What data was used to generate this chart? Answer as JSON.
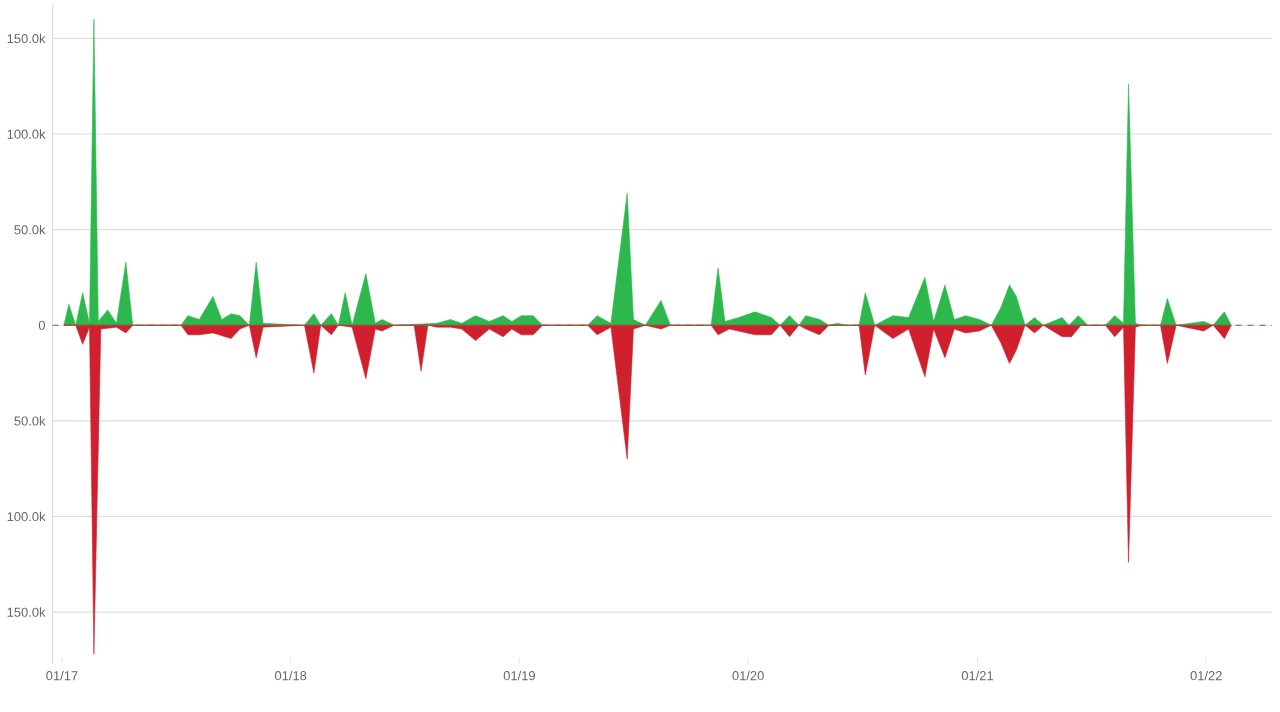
{
  "chart_data": {
    "type": "area",
    "xlim": [
      "2016-12-17",
      "2022-04-16"
    ],
    "ylim": [
      -177000,
      168000
    ],
    "xticks": [
      {
        "value": "2017-01-01",
        "label": "01/17"
      },
      {
        "value": "2018-01-01",
        "label": "01/18"
      },
      {
        "value": "2019-01-01",
        "label": "01/19"
      },
      {
        "value": "2020-01-01",
        "label": "01/20"
      },
      {
        "value": "2021-01-01",
        "label": "01/21"
      },
      {
        "value": "2022-01-01",
        "label": "01/22"
      }
    ],
    "yticks": [
      {
        "value": -150000,
        "label": "150.0k"
      },
      {
        "value": -100000,
        "label": "100.0k"
      },
      {
        "value": -50000,
        "label": "50.0k"
      },
      0,
      {
        "value": 50000,
        "label": "50.0k"
      },
      {
        "value": 100000,
        "label": "100.0k"
      },
      {
        "value": 150000,
        "label": "150.0k"
      }
    ],
    "grid": "y",
    "ref_lines": [
      {
        "axis": "y",
        "value": 0,
        "color": "#8a5a3c",
        "line_style": "dashed"
      }
    ],
    "series": [
      {
        "color": "#2db84d",
        "x": [
          "2017-01-04",
          "2017-01-12",
          "2017-01-23",
          "2017-02-03",
          "2017-02-14",
          "2017-02-21",
          "2017-02-28",
          "2017-03-15",
          "2017-03-29",
          "2017-04-13",
          "2017-04-24",
          "2017-07-10",
          "2017-07-21",
          "2017-08-08",
          "2017-08-30",
          "2017-09-13",
          "2017-09-28",
          "2017-10-12",
          "2017-10-27",
          "2017-11-07",
          "2017-11-18",
          "2018-01-23",
          "2018-02-07",
          "2018-02-18",
          "2018-03-07",
          "2018-03-18",
          "2018-03-29",
          "2018-04-09",
          "2018-05-01",
          "2018-05-16",
          "2018-05-27",
          "2018-06-15",
          "2018-08-22",
          "2018-09-13",
          "2018-10-01",
          "2018-10-23",
          "2018-11-14",
          "2018-12-06",
          "2018-12-20",
          "2019-01-04",
          "2019-01-23",
          "2019-02-07",
          "2019-04-20",
          "2019-05-05",
          "2019-05-27",
          "2019-06-22",
          "2019-07-02",
          "2019-07-21",
          "2019-08-15",
          "2019-08-30",
          "2019-11-03",
          "2019-11-14",
          "2019-11-25",
          "2019-12-17",
          "2020-01-12",
          "2020-02-07",
          "2020-02-21",
          "2020-03-07",
          "2020-03-22",
          "2020-04-02",
          "2020-04-24",
          "2020-05-09",
          "2020-05-23",
          "2020-06-04",
          "2020-06-26",
          "2020-07-06",
          "2020-07-21",
          "2020-08-19",
          "2020-09-13",
          "2020-10-09",
          "2020-10-23",
          "2020-11-10",
          "2020-11-25",
          "2020-12-13",
          "2021-01-04",
          "2021-01-23",
          "2021-02-07",
          "2021-02-21",
          "2021-03-04",
          "2021-03-18",
          "2021-04-02",
          "2021-04-16",
          "2021-05-16",
          "2021-05-27",
          "2021-06-11",
          "2021-06-26",
          "2021-07-24",
          "2021-08-08",
          "2021-08-22",
          "2021-08-30",
          "2021-09-10",
          "2021-09-20",
          "2021-10-20",
          "2021-10-31",
          "2021-11-14",
          "2021-12-28",
          "2022-01-12",
          "2022-01-30",
          "2022-02-10"
        ],
        "values": [
          0,
          11000,
          0,
          17000,
          1000,
          160000,
          2000,
          8000,
          1000,
          33000,
          0,
          0,
          5000,
          3000,
          15000,
          3000,
          6000,
          5000,
          0,
          33000,
          1000,
          0,
          6000,
          0,
          6000,
          0,
          17000,
          0,
          27000,
          1000,
          3000,
          0,
          1000,
          3000,
          1000,
          5000,
          2000,
          5000,
          2000,
          5000,
          5000,
          0,
          0,
          5000,
          1000,
          69000,
          3000,
          0,
          13000,
          0,
          0,
          30000,
          2000,
          4000,
          7000,
          4000,
          0,
          5000,
          0,
          5000,
          3000,
          0,
          1000,
          0,
          0,
          17000,
          0,
          5000,
          4000,
          25000,
          2000,
          21000,
          3000,
          5000,
          3000,
          0,
          9000,
          21000,
          15000,
          0,
          4000,
          0,
          4000,
          0,
          5000,
          0,
          0,
          5000,
          1000,
          126000,
          1000,
          0,
          0,
          14000,
          0,
          2000,
          0,
          7000,
          0
        ]
      },
      {
        "color": "#d0202e",
        "x": [
          "2017-01-04",
          "2017-01-23",
          "2017-02-03",
          "2017-02-14",
          "2017-02-21",
          "2017-03-04",
          "2017-03-29",
          "2017-04-13",
          "2017-04-24",
          "2017-07-10",
          "2017-07-21",
          "2017-08-08",
          "2017-08-30",
          "2017-09-28",
          "2017-10-12",
          "2017-10-27",
          "2017-11-07",
          "2017-11-18",
          "2018-01-23",
          "2018-02-07",
          "2018-02-18",
          "2018-03-07",
          "2018-03-18",
          "2018-04-09",
          "2018-05-01",
          "2018-05-16",
          "2018-05-27",
          "2018-06-15",
          "2018-07-17",
          "2018-07-28",
          "2018-08-08",
          "2018-08-22",
          "2018-09-13",
          "2018-10-01",
          "2018-10-23",
          "2018-11-14",
          "2018-12-06",
          "2018-12-20",
          "2019-01-04",
          "2019-01-23",
          "2019-02-07",
          "2019-04-20",
          "2019-05-05",
          "2019-05-27",
          "2019-06-22",
          "2019-07-02",
          "2019-07-21",
          "2019-08-15",
          "2019-08-30",
          "2019-11-03",
          "2019-11-14",
          "2019-12-02",
          "2020-01-12",
          "2020-02-07",
          "2020-02-21",
          "2020-03-07",
          "2020-03-22",
          "2020-04-02",
          "2020-04-24",
          "2020-05-09",
          "2020-06-26",
          "2020-07-06",
          "2020-07-21",
          "2020-08-19",
          "2020-09-13",
          "2020-10-09",
          "2020-10-23",
          "2020-11-10",
          "2020-11-25",
          "2020-12-13",
          "2021-01-04",
          "2021-01-23",
          "2021-02-07",
          "2021-02-21",
          "2021-03-04",
          "2021-03-18",
          "2021-04-02",
          "2021-04-16",
          "2021-05-16",
          "2021-05-31",
          "2021-06-15",
          "2021-07-24",
          "2021-08-08",
          "2021-08-22",
          "2021-08-30",
          "2021-09-10",
          "2021-09-20",
          "2021-10-20",
          "2021-10-31",
          "2021-11-14",
          "2021-12-28",
          "2022-01-12",
          "2022-01-30",
          "2022-02-10"
        ],
        "values": [
          0,
          0,
          -10000,
          -1000,
          -172000,
          -2000,
          -1000,
          -4000,
          0,
          0,
          -5000,
          -5000,
          -4000,
          -7000,
          -2000,
          0,
          -17000,
          -1000,
          0,
          -25000,
          0,
          -5000,
          0,
          -1000,
          -28000,
          -2000,
          -3000,
          0,
          0,
          -24000,
          0,
          -1000,
          -1000,
          -2000,
          -8000,
          -2000,
          -6000,
          -2000,
          -5000,
          -5000,
          0,
          0,
          -5000,
          -1000,
          -70000,
          -2000,
          0,
          -2000,
          0,
          0,
          -5000,
          -2000,
          -5000,
          -5000,
          0,
          -6000,
          0,
          -2000,
          -5000,
          0,
          0,
          -26000,
          0,
          -7000,
          -2000,
          -27000,
          -2000,
          -17000,
          -2000,
          -4000,
          -3000,
          0,
          -9000,
          -20000,
          -13000,
          0,
          -4000,
          0,
          -6000,
          -6000,
          0,
          0,
          -6000,
          -1000,
          -124000,
          -1000,
          0,
          0,
          -20000,
          0,
          -3000,
          0,
          -7000,
          0
        ]
      }
    ]
  }
}
